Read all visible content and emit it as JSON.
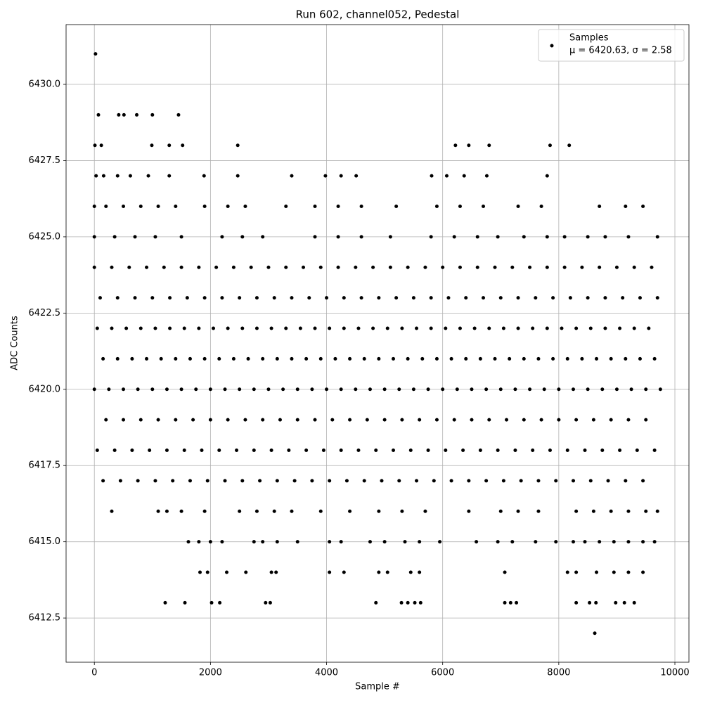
{
  "chart_data": {
    "type": "scatter",
    "title": "Run 602, channel052, Pedestal",
    "xlabel": "Sample #",
    "ylabel": "ADC Counts",
    "xlim": [
      -487,
      10242
    ],
    "ylim": [
      6411.05,
      6431.96
    ],
    "xticks": [
      0,
      2000,
      4000,
      6000,
      8000,
      10000
    ],
    "yticks": [
      6412.5,
      {
        "value": 6415,
        "label": "6415.0"
      },
      6417.5,
      {
        "value": 6420,
        "label": "6420.0"
      },
      6422.5,
      {
        "value": 6425,
        "label": "6425.0"
      },
      6427.5,
      {
        "value": 6430,
        "label": "6430.0"
      }
    ],
    "grid": true,
    "legend": "upper right",
    "legend_note": "μ = 6420.63, σ = 2.58",
    "series": [
      {
        "name": "Samples",
        "color": "#000000",
        "x": [
          20,
          8620,
          70,
          420,
          510,
          730,
          1000,
          1450,
          10,
          120,
          990,
          1290,
          1520,
          2470,
          6220,
          6450,
          6800,
          7850,
          8180,
          30,
          160,
          400,
          620,
          930,
          1290,
          1890,
          2470,
          3400,
          3980,
          4250,
          4510,
          5810,
          6070,
          6370,
          6760,
          7800,
          0,
          200,
          500,
          800,
          1100,
          1400,
          1900,
          2300,
          2600,
          3300,
          3800,
          4200,
          4600,
          5200,
          5900,
          6300,
          6700,
          7300,
          7700,
          8700,
          9150,
          9450,
          0,
          350,
          700,
          1050,
          1500,
          2200,
          2550,
          2900,
          3800,
          4200,
          4600,
          5100,
          5800,
          6200,
          6600,
          6950,
          7400,
          7800,
          8100,
          8500,
          8800,
          9200,
          9700,
          0,
          300,
          600,
          900,
          1200,
          1500,
          1800,
          2100,
          2400,
          2700,
          3000,
          3300,
          3600,
          3900,
          4200,
          4500,
          4800,
          5100,
          5400,
          5700,
          6000,
          6300,
          6600,
          6900,
          7200,
          7500,
          7800,
          8100,
          8400,
          8700,
          9000,
          9300,
          9600,
          100,
          400,
          700,
          1000,
          1300,
          1600,
          1900,
          2200,
          2500,
          2800,
          3100,
          3400,
          3700,
          4000,
          4300,
          4600,
          4900,
          5200,
          5500,
          5800,
          6100,
          6400,
          6700,
          7000,
          7300,
          7600,
          7900,
          8200,
          8500,
          8800,
          9100,
          9400,
          9700,
          50,
          300,
          550,
          800,
          1050,
          1300,
          1550,
          1800,
          2050,
          2300,
          2550,
          2800,
          3050,
          3300,
          3550,
          3800,
          4050,
          4300,
          4550,
          4800,
          5050,
          5300,
          5550,
          5800,
          6050,
          6300,
          6550,
          6800,
          7050,
          7300,
          7550,
          7800,
          8050,
          8300,
          8550,
          8800,
          9050,
          9300,
          9550,
          150,
          400,
          650,
          900,
          1150,
          1400,
          1650,
          1900,
          2150,
          2400,
          2650,
          2900,
          3150,
          3400,
          3650,
          3900,
          4150,
          4400,
          4650,
          4900,
          5150,
          5400,
          5650,
          5900,
          6150,
          6400,
          6650,
          6900,
          7150,
          7400,
          7650,
          7900,
          8150,
          8400,
          8650,
          8900,
          9150,
          9400,
          9650,
          0,
          250,
          500,
          750,
          1000,
          1250,
          1500,
          1750,
          2000,
          2250,
          2500,
          2750,
          3000,
          3250,
          3500,
          3750,
          4000,
          4250,
          4500,
          4750,
          5000,
          5250,
          5500,
          5750,
          6000,
          6250,
          6500,
          6750,
          7000,
          7250,
          7500,
          7750,
          8000,
          8250,
          8500,
          8750,
          9000,
          9250,
          9500,
          9750,
          200,
          500,
          800,
          1100,
          1400,
          1700,
          2000,
          2300,
          2600,
          2900,
          3200,
          3500,
          3800,
          4100,
          4400,
          4700,
          5000,
          5300,
          5600,
          5900,
          6200,
          6500,
          6800,
          7100,
          7400,
          7700,
          8000,
          8300,
          8600,
          8900,
          9200,
          9500,
          50,
          350,
          650,
          950,
          1250,
          1550,
          1850,
          2150,
          2450,
          2750,
          3050,
          3350,
          3650,
          3950,
          4250,
          4550,
          4850,
          5150,
          5450,
          5750,
          6050,
          6350,
          6650,
          6950,
          7250,
          7550,
          7850,
          8150,
          8450,
          8750,
          9050,
          9350,
          9650,
          150,
          450,
          750,
          1050,
          1350,
          1650,
          1950,
          2250,
          2550,
          2850,
          3150,
          3450,
          3750,
          4050,
          4350,
          4650,
          4950,
          5250,
          5550,
          5850,
          6150,
          6450,
          6750,
          7050,
          7350,
          7650,
          7950,
          8250,
          8550,
          8850,
          9150,
          9450,
          300,
          1100,
          1250,
          1500,
          1900,
          2500,
          2800,
          3100,
          3400,
          3900,
          4400,
          4900,
          5300,
          5700,
          6450,
          7000,
          7300,
          7650,
          8300,
          8600,
          8900,
          9200,
          9500,
          9700,
          1620,
          1800,
          2000,
          2200,
          2750,
          2900,
          3150,
          3500,
          4050,
          4250,
          4750,
          5000,
          5350,
          5600,
          5950,
          6580,
          6950,
          7200,
          7600,
          7950,
          8250,
          8450,
          8700,
          8950,
          9200,
          9450,
          9650,
          1820,
          1950,
          2280,
          2610,
          3050,
          3130,
          4050,
          4300,
          4900,
          5050,
          5450,
          5600,
          7070,
          8150,
          8300,
          8650,
          8950,
          9200,
          9450,
          1220,
          1560,
          2020,
          2160,
          2950,
          3030,
          4850,
          5290,
          5400,
          5520,
          5620,
          7070,
          7170,
          7270,
          8300,
          8530,
          8640,
          8980,
          9130,
          9300
        ],
        "values": [
          6431,
          6412,
          6429,
          6429,
          6429,
          6429,
          6429,
          6429,
          6428,
          6428,
          6428,
          6428,
          6428,
          6428,
          6428,
          6428,
          6428,
          6428,
          6428,
          6427,
          6427,
          6427,
          6427,
          6427,
          6427,
          6427,
          6427,
          6427,
          6427,
          6427,
          6427,
          6427,
          6427,
          6427,
          6427,
          6427,
          6426,
          6426,
          6426,
          6426,
          6426,
          6426,
          6426,
          6426,
          6426,
          6426,
          6426,
          6426,
          6426,
          6426,
          6426,
          6426,
          6426,
          6426,
          6426,
          6426,
          6426,
          6426,
          6425,
          6425,
          6425,
          6425,
          6425,
          6425,
          6425,
          6425,
          6425,
          6425,
          6425,
          6425,
          6425,
          6425,
          6425,
          6425,
          6425,
          6425,
          6425,
          6425,
          6425,
          6425,
          6425,
          6424,
          6424,
          6424,
          6424,
          6424,
          6424,
          6424,
          6424,
          6424,
          6424,
          6424,
          6424,
          6424,
          6424,
          6424,
          6424,
          6424,
          6424,
          6424,
          6424,
          6424,
          6424,
          6424,
          6424,
          6424,
          6424,
          6424,
          6424,
          6424,
          6424,
          6424,
          6424,
          6424,
          6423,
          6423,
          6423,
          6423,
          6423,
          6423,
          6423,
          6423,
          6423,
          6423,
          6423,
          6423,
          6423,
          6423,
          6423,
          6423,
          6423,
          6423,
          6423,
          6423,
          6423,
          6423,
          6423,
          6423,
          6423,
          6423,
          6423,
          6423,
          6423,
          6423,
          6423,
          6423,
          6423,
          6422,
          6422,
          6422,
          6422,
          6422,
          6422,
          6422,
          6422,
          6422,
          6422,
          6422,
          6422,
          6422,
          6422,
          6422,
          6422,
          6422,
          6422,
          6422,
          6422,
          6422,
          6422,
          6422,
          6422,
          6422,
          6422,
          6422,
          6422,
          6422,
          6422,
          6422,
          6422,
          6422,
          6422,
          6422,
          6422,
          6422,
          6422,
          6422,
          6421,
          6421,
          6421,
          6421,
          6421,
          6421,
          6421,
          6421,
          6421,
          6421,
          6421,
          6421,
          6421,
          6421,
          6421,
          6421,
          6421,
          6421,
          6421,
          6421,
          6421,
          6421,
          6421,
          6421,
          6421,
          6421,
          6421,
          6421,
          6421,
          6421,
          6421,
          6421,
          6421,
          6421,
          6421,
          6421,
          6421,
          6421,
          6421,
          6420,
          6420,
          6420,
          6420,
          6420,
          6420,
          6420,
          6420,
          6420,
          6420,
          6420,
          6420,
          6420,
          6420,
          6420,
          6420,
          6420,
          6420,
          6420,
          6420,
          6420,
          6420,
          6420,
          6420,
          6420,
          6420,
          6420,
          6420,
          6420,
          6420,
          6420,
          6420,
          6420,
          6420,
          6420,
          6420,
          6420,
          6420,
          6420,
          6420,
          6419,
          6419,
          6419,
          6419,
          6419,
          6419,
          6419,
          6419,
          6419,
          6419,
          6419,
          6419,
          6419,
          6419,
          6419,
          6419,
          6419,
          6419,
          6419,
          6419,
          6419,
          6419,
          6419,
          6419,
          6419,
          6419,
          6419,
          6419,
          6419,
          6419,
          6419,
          6419,
          6418,
          6418,
          6418,
          6418,
          6418,
          6418,
          6418,
          6418,
          6418,
          6418,
          6418,
          6418,
          6418,
          6418,
          6418,
          6418,
          6418,
          6418,
          6418,
          6418,
          6418,
          6418,
          6418,
          6418,
          6418,
          6418,
          6418,
          6418,
          6418,
          6418,
          6418,
          6418,
          6418,
          6417,
          6417,
          6417,
          6417,
          6417,
          6417,
          6417,
          6417,
          6417,
          6417,
          6417,
          6417,
          6417,
          6417,
          6417,
          6417,
          6417,
          6417,
          6417,
          6417,
          6417,
          6417,
          6417,
          6417,
          6417,
          6417,
          6417,
          6417,
          6417,
          6417,
          6417,
          6417,
          6416,
          6416,
          6416,
          6416,
          6416,
          6416,
          6416,
          6416,
          6416,
          6416,
          6416,
          6416,
          6416,
          6416,
          6416,
          6416,
          6416,
          6416,
          6416,
          6416,
          6416,
          6416,
          6416,
          6416,
          6415,
          6415,
          6415,
          6415,
          6415,
          6415,
          6415,
          6415,
          6415,
          6415,
          6415,
          6415,
          6415,
          6415,
          6415,
          6415,
          6415,
          6415,
          6415,
          6415,
          6415,
          6415,
          6415,
          6415,
          6415,
          6415,
          6415,
          6414,
          6414,
          6414,
          6414,
          6414,
          6414,
          6414,
          6414,
          6414,
          6414,
          6414,
          6414,
          6414,
          6414,
          6414,
          6414,
          6414,
          6414,
          6414,
          6413,
          6413,
          6413,
          6413,
          6413,
          6413,
          6413,
          6413,
          6413,
          6413,
          6413,
          6413,
          6413,
          6413,
          6413,
          6413,
          6413,
          6413,
          6413,
          6413
        ]
      }
    ]
  }
}
